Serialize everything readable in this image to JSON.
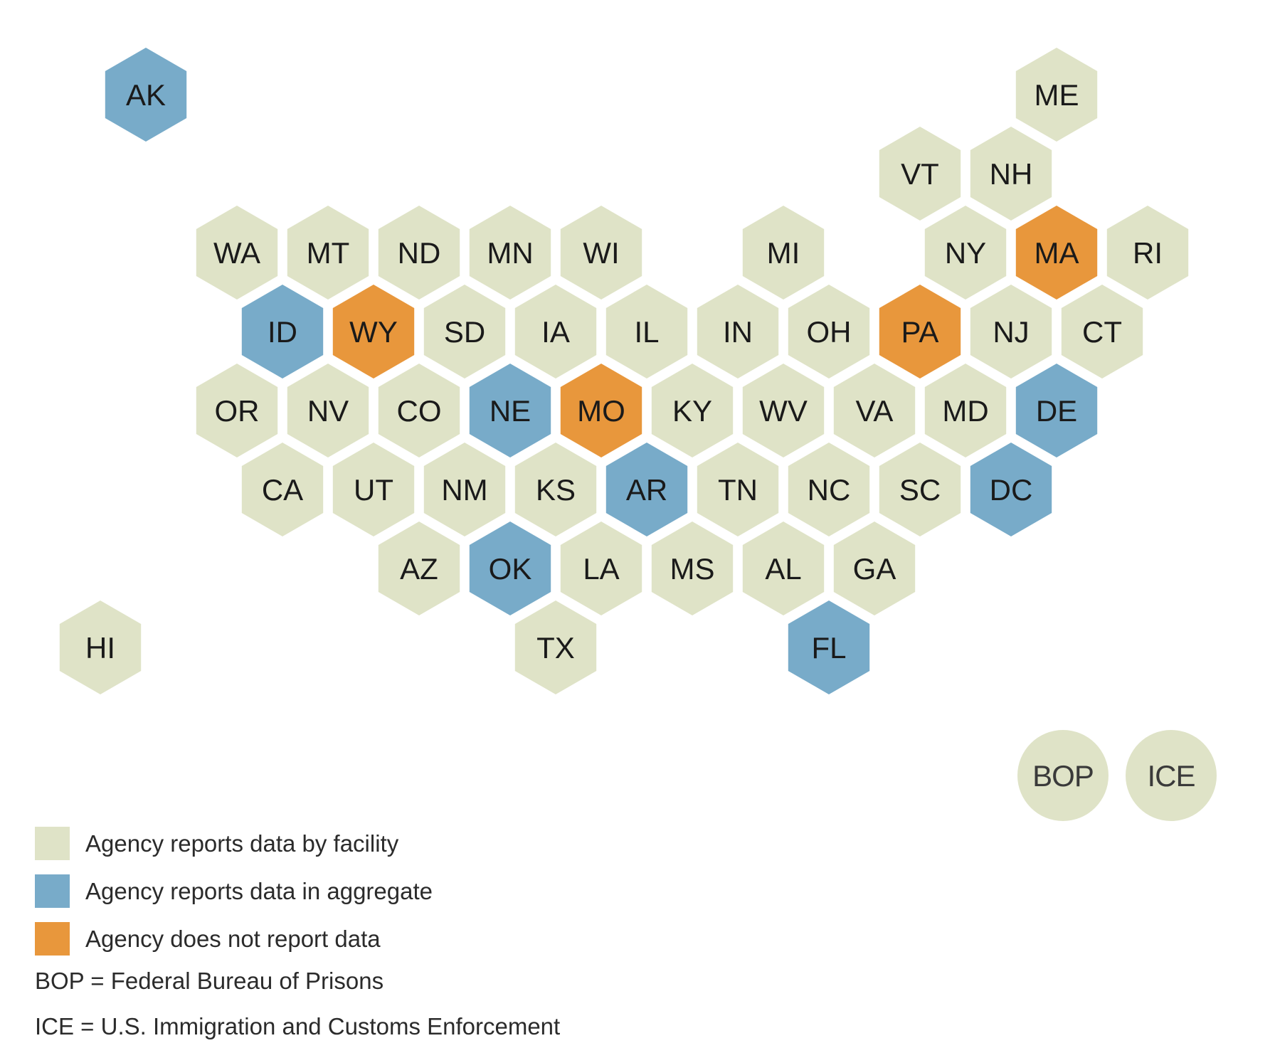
{
  "colors": {
    "facility": "#dfe3c7",
    "aggregate": "#78abc9",
    "none": "#e8973c"
  },
  "states": [
    {
      "abbr": "AK",
      "status": "aggregate"
    },
    {
      "abbr": "ME",
      "status": "facility"
    },
    {
      "abbr": "VT",
      "status": "facility"
    },
    {
      "abbr": "NH",
      "status": "facility"
    },
    {
      "abbr": "WA",
      "status": "facility"
    },
    {
      "abbr": "MT",
      "status": "facility"
    },
    {
      "abbr": "ND",
      "status": "facility"
    },
    {
      "abbr": "MN",
      "status": "facility"
    },
    {
      "abbr": "WI",
      "status": "facility"
    },
    {
      "abbr": "MI",
      "status": "facility"
    },
    {
      "abbr": "NY",
      "status": "facility"
    },
    {
      "abbr": "MA",
      "status": "none"
    },
    {
      "abbr": "RI",
      "status": "facility"
    },
    {
      "abbr": "ID",
      "status": "aggregate"
    },
    {
      "abbr": "WY",
      "status": "none"
    },
    {
      "abbr": "SD",
      "status": "facility"
    },
    {
      "abbr": "IA",
      "status": "facility"
    },
    {
      "abbr": "IL",
      "status": "facility"
    },
    {
      "abbr": "IN",
      "status": "facility"
    },
    {
      "abbr": "OH",
      "status": "facility"
    },
    {
      "abbr": "PA",
      "status": "none"
    },
    {
      "abbr": "NJ",
      "status": "facility"
    },
    {
      "abbr": "CT",
      "status": "facility"
    },
    {
      "abbr": "OR",
      "status": "facility"
    },
    {
      "abbr": "NV",
      "status": "facility"
    },
    {
      "abbr": "CO",
      "status": "facility"
    },
    {
      "abbr": "NE",
      "status": "aggregate"
    },
    {
      "abbr": "MO",
      "status": "none"
    },
    {
      "abbr": "KY",
      "status": "facility"
    },
    {
      "abbr": "WV",
      "status": "facility"
    },
    {
      "abbr": "VA",
      "status": "facility"
    },
    {
      "abbr": "MD",
      "status": "facility"
    },
    {
      "abbr": "DE",
      "status": "aggregate"
    },
    {
      "abbr": "CA",
      "status": "facility"
    },
    {
      "abbr": "UT",
      "status": "facility"
    },
    {
      "abbr": "NM",
      "status": "facility"
    },
    {
      "abbr": "KS",
      "status": "facility"
    },
    {
      "abbr": "AR",
      "status": "aggregate"
    },
    {
      "abbr": "TN",
      "status": "facility"
    },
    {
      "abbr": "NC",
      "status": "facility"
    },
    {
      "abbr": "SC",
      "status": "facility"
    },
    {
      "abbr": "DC",
      "status": "aggregate"
    },
    {
      "abbr": "AZ",
      "status": "facility"
    },
    {
      "abbr": "OK",
      "status": "aggregate"
    },
    {
      "abbr": "LA",
      "status": "facility"
    },
    {
      "abbr": "MS",
      "status": "facility"
    },
    {
      "abbr": "AL",
      "status": "facility"
    },
    {
      "abbr": "GA",
      "status": "facility"
    },
    {
      "abbr": "HI",
      "status": "facility"
    },
    {
      "abbr": "TX",
      "status": "facility"
    },
    {
      "abbr": "FL",
      "status": "aggregate"
    }
  ],
  "federal": [
    {
      "abbr": "BOP",
      "status": "facility"
    },
    {
      "abbr": "ICE",
      "status": "facility"
    }
  ],
  "legend": {
    "facility": "Agency reports data by facility",
    "aggregate": "Agency reports data in aggregate",
    "none": "Agency does not report data"
  },
  "notes": {
    "bop": "BOP = Federal Bureau of Prisons",
    "ice": "ICE = U.S. Immigration and Customs Enforcement"
  }
}
